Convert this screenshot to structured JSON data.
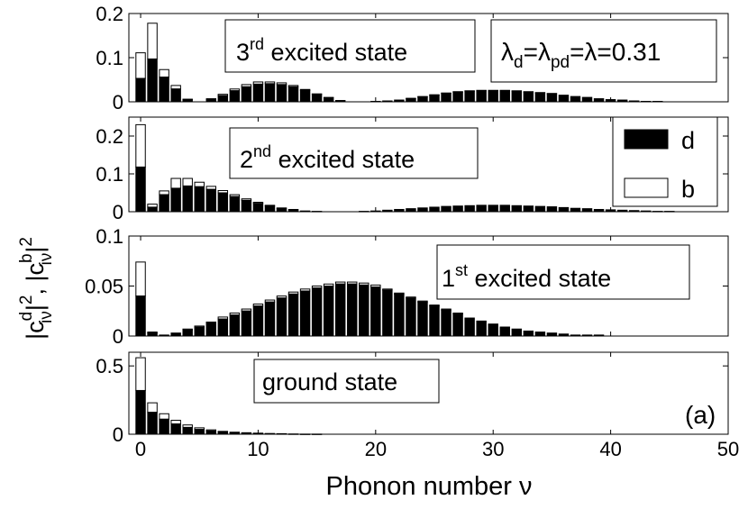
{
  "figure": {
    "ylabel": "|c_iν^d|², |c_iν^b|²",
    "ylabel_parts": {
      "bar": "|c",
      "d": "d",
      "iv": "iν",
      "two": "2",
      "sep": "|",
      "comma": ", ",
      "b": "b"
    },
    "xlabel": "Phonon number ν",
    "panel_label": "(a)",
    "parameter_text": "λd=λpd=λ=0.31",
    "parameter_parts": {
      "lam": "λ",
      "d": "d",
      "eq": "=",
      "pd": "pd",
      "tail": "=λ=0.31"
    },
    "legend": [
      {
        "label": "d",
        "fill": "#000000"
      },
      {
        "label": "b",
        "fill": "#ffffff"
      }
    ],
    "colors": {
      "d": "#000000",
      "b": "#ffffff",
      "axis": "#000000",
      "bg": "#ffffff"
    }
  },
  "chart_data": [
    {
      "type": "bar",
      "stacked": true,
      "title": "3rd excited state",
      "title_parts": {
        "num": "3",
        "sup": "rd",
        "rest": " excited state"
      },
      "xlabel": "Phonon number ν",
      "ylabel": "|c_iν^d|², |c_iν^b|²",
      "xlim": [
        -1,
        50
      ],
      "ylim": [
        0,
        0.2
      ],
      "yticks": [
        "0",
        "0.1",
        "0.2"
      ],
      "ytick_values": [
        0,
        0.1,
        0.2
      ],
      "x": [
        0,
        1,
        2,
        3,
        4,
        5,
        6,
        7,
        8,
        9,
        10,
        11,
        12,
        13,
        14,
        15,
        16,
        17,
        18,
        19,
        20,
        21,
        22,
        23,
        24,
        25,
        26,
        27,
        28,
        29,
        30,
        31,
        32,
        33,
        34,
        35,
        36,
        37,
        38,
        39,
        40,
        41,
        42,
        43,
        44,
        45,
        46,
        47,
        48,
        49
      ],
      "series": [
        {
          "name": "d",
          "values": [
            0.053,
            0.097,
            0.056,
            0.029,
            0.005,
            0,
            0.005,
            0.014,
            0.025,
            0.034,
            0.04,
            0.041,
            0.039,
            0.034,
            0.026,
            0.017,
            0.009,
            0.003,
            0,
            0,
            0.001,
            0.002,
            0.004,
            0.007,
            0.011,
            0.015,
            0.019,
            0.022,
            0.024,
            0.025,
            0.025,
            0.025,
            0.024,
            0.022,
            0.02,
            0.018,
            0.015,
            0.012,
            0.01,
            0.007,
            0.005,
            0.004,
            0.002,
            0.001,
            0.001,
            0,
            0,
            0,
            0,
            0
          ]
        },
        {
          "name": "b",
          "values": [
            0.058,
            0.081,
            0.017,
            0.008,
            0.001,
            0,
            0.002,
            0.003,
            0.004,
            0.005,
            0.005,
            0.004,
            0.004,
            0.003,
            0.002,
            0.001,
            0.001,
            0,
            0,
            0,
            0,
            0,
            0,
            0.001,
            0.001,
            0.001,
            0.001,
            0.001,
            0.001,
            0.001,
            0.001,
            0.001,
            0.001,
            0.001,
            0.001,
            0.001,
            0,
            0,
            0,
            0,
            0,
            0,
            0,
            0,
            0,
            0,
            0,
            0,
            0,
            0
          ]
        }
      ]
    },
    {
      "type": "bar",
      "stacked": true,
      "title": "2nd excited state",
      "title_parts": {
        "num": "2",
        "sup": "nd",
        "rest": " excited state"
      },
      "xlabel": "Phonon number ν",
      "ylabel": "|c_iν^d|², |c_iν^b|²",
      "xlim": [
        -1,
        50
      ],
      "ylim": [
        0,
        0.25
      ],
      "yticks": [
        "0",
        "0.1",
        "0.2"
      ],
      "ytick_values": [
        0,
        0.1,
        0.2
      ],
      "x": [
        0,
        1,
        2,
        3,
        4,
        5,
        6,
        7,
        8,
        9,
        10,
        11,
        12,
        13,
        14,
        15,
        16,
        17,
        18,
        19,
        20,
        21,
        22,
        23,
        24,
        25,
        26,
        27,
        28,
        29,
        30,
        31,
        32,
        33,
        34,
        35,
        36,
        37,
        38,
        39,
        40,
        41,
        42,
        43,
        44,
        45,
        46,
        47,
        48,
        49
      ],
      "series": [
        {
          "name": "d",
          "values": [
            0.118,
            0.012,
            0.045,
            0.062,
            0.068,
            0.066,
            0.059,
            0.05,
            0.04,
            0.03,
            0.022,
            0.015,
            0.009,
            0.005,
            0.002,
            0.001,
            0,
            0,
            0,
            0.001,
            0.002,
            0.004,
            0.006,
            0.008,
            0.01,
            0.012,
            0.014,
            0.015,
            0.016,
            0.017,
            0.017,
            0.017,
            0.016,
            0.015,
            0.014,
            0.013,
            0.011,
            0.009,
            0.008,
            0.006,
            0.005,
            0.004,
            0.003,
            0.002,
            0.001,
            0.001,
            0,
            0,
            0,
            0
          ]
        },
        {
          "name": "b",
          "values": [
            0.112,
            0.008,
            0.01,
            0.026,
            0.02,
            0.012,
            0.008,
            0.006,
            0.005,
            0.004,
            0.003,
            0.002,
            0.001,
            0.001,
            0,
            0,
            0,
            0,
            0,
            0,
            0,
            0,
            0,
            0,
            0,
            0,
            0,
            0,
            0,
            0,
            0,
            0,
            0,
            0,
            0,
            0,
            0,
            0,
            0,
            0,
            0,
            0,
            0,
            0,
            0,
            0,
            0,
            0,
            0,
            0
          ]
        }
      ]
    },
    {
      "type": "bar",
      "stacked": true,
      "title": "1st excited state",
      "title_parts": {
        "num": "1",
        "sup": "st",
        "rest": " excited state"
      },
      "xlabel": "Phonon number ν",
      "ylabel": "|c_iν^d|², |c_iν^b|²",
      "xlim": [
        -1,
        50
      ],
      "ylim": [
        0,
        0.1
      ],
      "yticks": [
        "0",
        "0.05",
        "0.1"
      ],
      "ytick_values": [
        0,
        0.05,
        0.1
      ],
      "x": [
        0,
        1,
        2,
        3,
        4,
        5,
        6,
        7,
        8,
        9,
        10,
        11,
        12,
        13,
        14,
        15,
        16,
        17,
        18,
        19,
        20,
        21,
        22,
        23,
        24,
        25,
        26,
        27,
        28,
        29,
        30,
        31,
        32,
        33,
        34,
        35,
        36,
        37,
        38,
        39,
        40,
        41,
        42,
        43,
        44,
        45,
        46,
        47,
        48,
        49
      ],
      "series": [
        {
          "name": "d",
          "values": [
            0.04,
            0.003,
            0.001,
            0.003,
            0.006,
            0.009,
            0.013,
            0.017,
            0.021,
            0.025,
            0.03,
            0.034,
            0.038,
            0.042,
            0.045,
            0.048,
            0.05,
            0.052,
            0.052,
            0.051,
            0.049,
            0.046,
            0.042,
            0.038,
            0.034,
            0.03,
            0.026,
            0.022,
            0.018,
            0.015,
            0.012,
            0.009,
            0.007,
            0.005,
            0.004,
            0.003,
            0.002,
            0.001,
            0.001,
            0.001,
            0,
            0,
            0,
            0,
            0,
            0,
            0,
            0,
            0,
            0
          ]
        },
        {
          "name": "b",
          "values": [
            0.034,
            0.001,
            0,
            0,
            0.001,
            0.001,
            0.001,
            0.002,
            0.002,
            0.002,
            0.002,
            0.002,
            0.002,
            0.002,
            0.002,
            0.002,
            0.002,
            0.002,
            0.002,
            0.002,
            0.002,
            0.001,
            0.001,
            0.001,
            0.001,
            0.001,
            0.001,
            0.001,
            0,
            0,
            0,
            0,
            0,
            0,
            0,
            0,
            0,
            0,
            0,
            0,
            0,
            0,
            0,
            0,
            0,
            0,
            0,
            0,
            0,
            0
          ]
        }
      ]
    },
    {
      "type": "bar",
      "stacked": true,
      "title": "ground state",
      "title_parts": {
        "num": "",
        "sup": "",
        "rest": "ground state"
      },
      "xlabel": "Phonon number ν",
      "ylabel": "|c_iν^d|², |c_iν^b|²",
      "xlim": [
        -1,
        50
      ],
      "ylim": [
        0,
        0.6
      ],
      "yticks": [
        "0",
        "0.5"
      ],
      "ytick_values": [
        0,
        0.5
      ],
      "xticks": [
        "0",
        "10",
        "20",
        "30",
        "40",
        "50"
      ],
      "xtick_values": [
        0,
        10,
        20,
        30,
        40,
        50
      ],
      "x": [
        0,
        1,
        2,
        3,
        4,
        5,
        6,
        7,
        8,
        9,
        10,
        11,
        12,
        13,
        14,
        15,
        16,
        17,
        18,
        19,
        20,
        21,
        22,
        23,
        24,
        25,
        26,
        27,
        28,
        29,
        30,
        31,
        32,
        33,
        34,
        35,
        36,
        37,
        38,
        39,
        40,
        41,
        42,
        43,
        44,
        45,
        46,
        47,
        48,
        49
      ],
      "series": [
        {
          "name": "d",
          "values": [
            0.32,
            0.16,
            0.11,
            0.075,
            0.05,
            0.035,
            0.024,
            0.016,
            0.011,
            0.008,
            0.006,
            0.004,
            0.003,
            0.002,
            0.001,
            0.001,
            0,
            0,
            0,
            0,
            0,
            0,
            0,
            0,
            0,
            0,
            0,
            0,
            0,
            0,
            0,
            0,
            0,
            0,
            0,
            0,
            0,
            0,
            0,
            0,
            0,
            0,
            0,
            0,
            0,
            0,
            0,
            0,
            0,
            0
          ]
        },
        {
          "name": "b",
          "values": [
            0.24,
            0.07,
            0.04,
            0.027,
            0.018,
            0.012,
            0.008,
            0.005,
            0.004,
            0.003,
            0.002,
            0.001,
            0.001,
            0,
            0,
            0,
            0,
            0,
            0,
            0,
            0,
            0,
            0,
            0,
            0,
            0,
            0,
            0,
            0,
            0,
            0,
            0,
            0,
            0,
            0,
            0,
            0,
            0,
            0,
            0,
            0,
            0,
            0,
            0,
            0,
            0,
            0,
            0,
            0,
            0
          ]
        }
      ]
    }
  ]
}
